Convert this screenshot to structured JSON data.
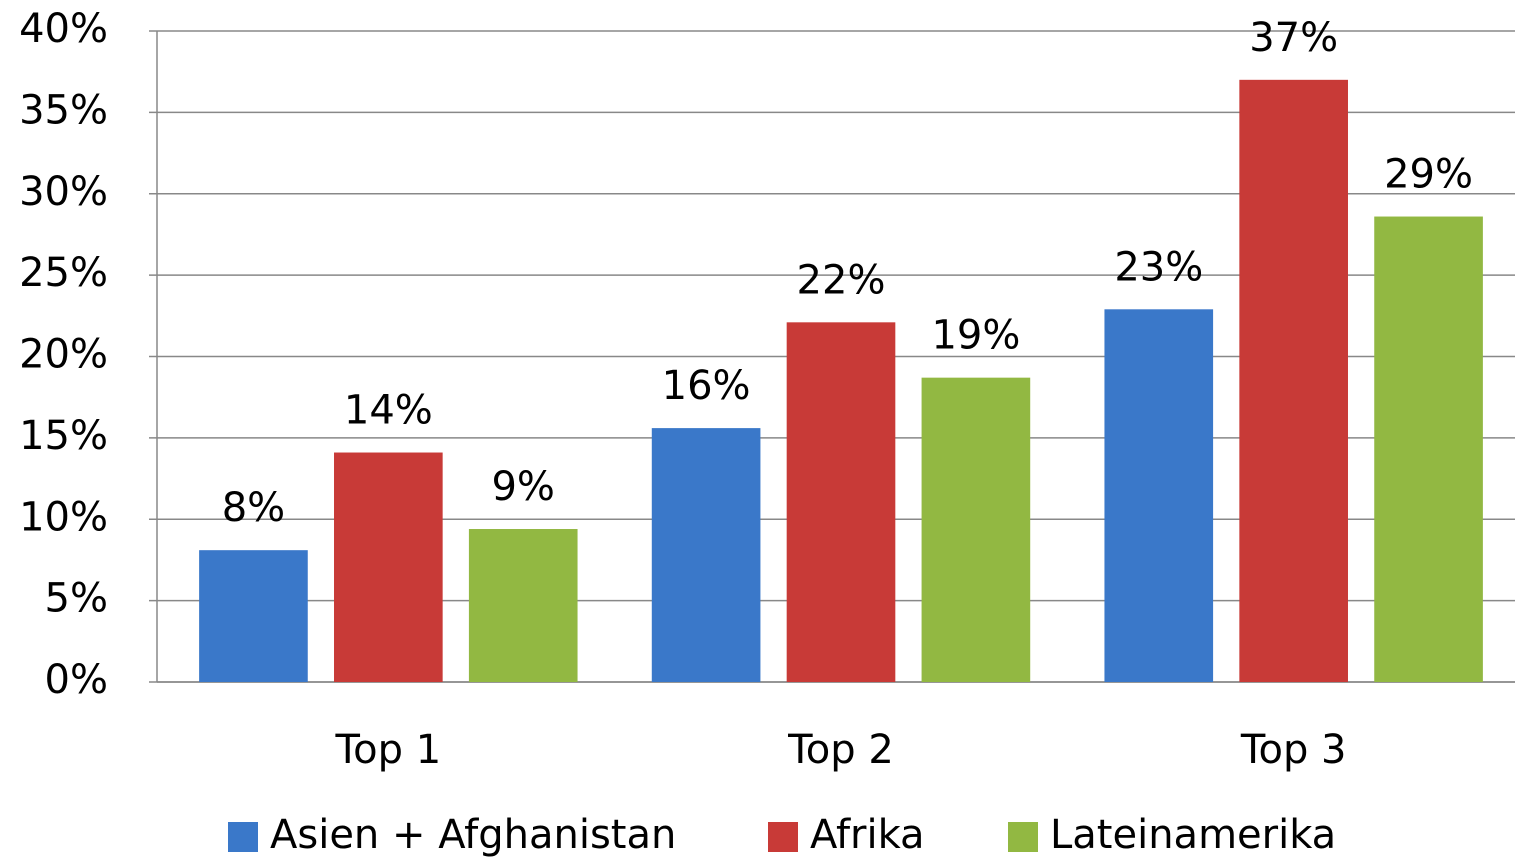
{
  "chart_data": {
    "type": "bar",
    "categories": [
      "Top 1",
      "Top 2",
      "Top 3"
    ],
    "series": [
      {
        "name": "Asien + Afghanistan",
        "color": "#3a78c9",
        "values": [
          8.1,
          15.6,
          22.9
        ],
        "value_labels": [
          "8%",
          "16%",
          "23%"
        ]
      },
      {
        "name": "Afrika",
        "color": "#c83a37",
        "values": [
          14.1,
          22.1,
          37.0
        ],
        "value_labels": [
          "14%",
          "22%",
          "37%"
        ]
      },
      {
        "name": "Lateinamerika",
        "color": "#92b842",
        "values": [
          9.4,
          18.7,
          28.6
        ],
        "value_labels": [
          "9%",
          "19%",
          "29%"
        ]
      }
    ],
    "ylim": [
      0,
      40
    ],
    "yticks": [
      {
        "value": 0,
        "label": "0%"
      },
      {
        "value": 5,
        "label": "5%"
      },
      {
        "value": 10,
        "label": "10%"
      },
      {
        "value": 15,
        "label": "15%"
      },
      {
        "value": 20,
        "label": "20%"
      },
      {
        "value": 25,
        "label": "25%"
      },
      {
        "value": 30,
        "label": "30%"
      },
      {
        "value": 35,
        "label": "35%"
      },
      {
        "value": 40,
        "label": "40%"
      }
    ],
    "grid": true,
    "legend": "bottom"
  }
}
